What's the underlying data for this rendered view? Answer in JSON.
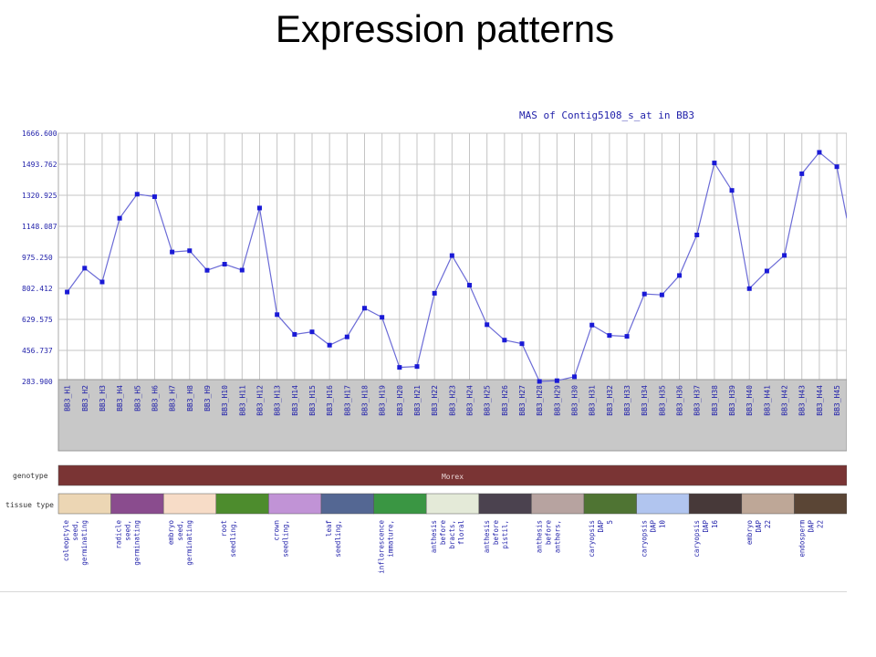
{
  "slide_title": "Expression patterns",
  "colors": {
    "line": "#6b6bd6",
    "marker": "#1a1ad6",
    "axis_text": "#2222aa",
    "label_band": "#c8c8c8",
    "genotype": "#7a3434"
  },
  "chart_data": {
    "type": "line",
    "title": "MAS of Contig5108_s_at in BB3",
    "ylim": [
      283.9,
      1666.6
    ],
    "y_ticks": [
      "1666.600",
      "1493.762",
      "1320.925",
      "1148.087",
      "975.250",
      "802.412",
      "629.575",
      "456.737",
      "283.900"
    ],
    "grid": true,
    "categories": [
      "BB3_H1",
      "BB3_H2",
      "BB3_H3",
      "BB3_H4",
      "BB3_H5",
      "BB3_H6",
      "BB3_H7",
      "BB3_H8",
      "BB3_H9",
      "BB3_H10",
      "BB3_H11",
      "BB3_H12",
      "BB3_H13",
      "BB3_H14",
      "BB3_H15",
      "BB3_H16",
      "BB3_H17",
      "BB3_H18",
      "BB3_H19",
      "BB3_H20",
      "BB3_H21",
      "BB3_H22",
      "BB3_H23",
      "BB3_H24",
      "BB3_H25",
      "BB3_H26",
      "BB3_H27",
      "BB3_H28",
      "BB3_H29",
      "BB3_H30",
      "BB3_H31",
      "BB3_H32",
      "BB3_H33",
      "BB3_H34",
      "BB3_H35",
      "BB3_H36",
      "BB3_H37",
      "BB3_H38",
      "BB3_H39",
      "BB3_H40",
      "BB3_H41",
      "BB3_H42",
      "BB3_H43",
      "BB3_H44",
      "BB3_H45"
    ],
    "values": [
      782,
      915,
      838,
      1193,
      1327,
      1313,
      1005,
      1012,
      903,
      937,
      904,
      1250,
      656,
      546,
      560,
      486,
      532,
      692,
      641,
      362,
      367,
      775,
      985,
      820,
      600,
      514,
      494,
      284,
      288,
      310,
      598,
      540,
      535,
      771,
      766,
      874,
      1100,
      1501,
      1348,
      801,
      899,
      986,
      1441,
      1560,
      1480
    ],
    "last_value_continues_to": 1192
  },
  "annotation": {
    "genotype_label": "genotype",
    "genotype_value": "Morex",
    "tissue_label": "tissue type",
    "tissues": [
      {
        "label": "coleoptyle seed, germinating",
        "color": "#ecd6b4"
      },
      {
        "label": "radicle seed, germinating",
        "color": "#8a4c8e"
      },
      {
        "label": "embryo seed, germinating",
        "color": "#f7dcc7"
      },
      {
        "label": "root seedling,",
        "color": "#4d8c2d"
      },
      {
        "label": "crown seedling,",
        "color": "#c193d6"
      },
      {
        "label": "leaf seedling,",
        "color": "#546793"
      },
      {
        "label": "inflorescence immature,",
        "color": "#3a9643"
      },
      {
        "label": "anthesis before bracts, floral",
        "color": "#e4ead8"
      },
      {
        "label": "anthesis before pistil,",
        "color": "#4b424f"
      },
      {
        "label": "anthesis before anthers,",
        "color": "#b7a3a0"
      },
      {
        "label": "caryopsis DAP 5",
        "color": "#4f7433"
      },
      {
        "label": "caryopsis DAP 10",
        "color": "#b1c5ef"
      },
      {
        "label": "caryopsis DAP 16",
        "color": "#473939"
      },
      {
        "label": "embryo DAP 22",
        "color": "#bea797"
      },
      {
        "label": "endosperm DAP 22",
        "color": "#5a4535"
      }
    ]
  }
}
